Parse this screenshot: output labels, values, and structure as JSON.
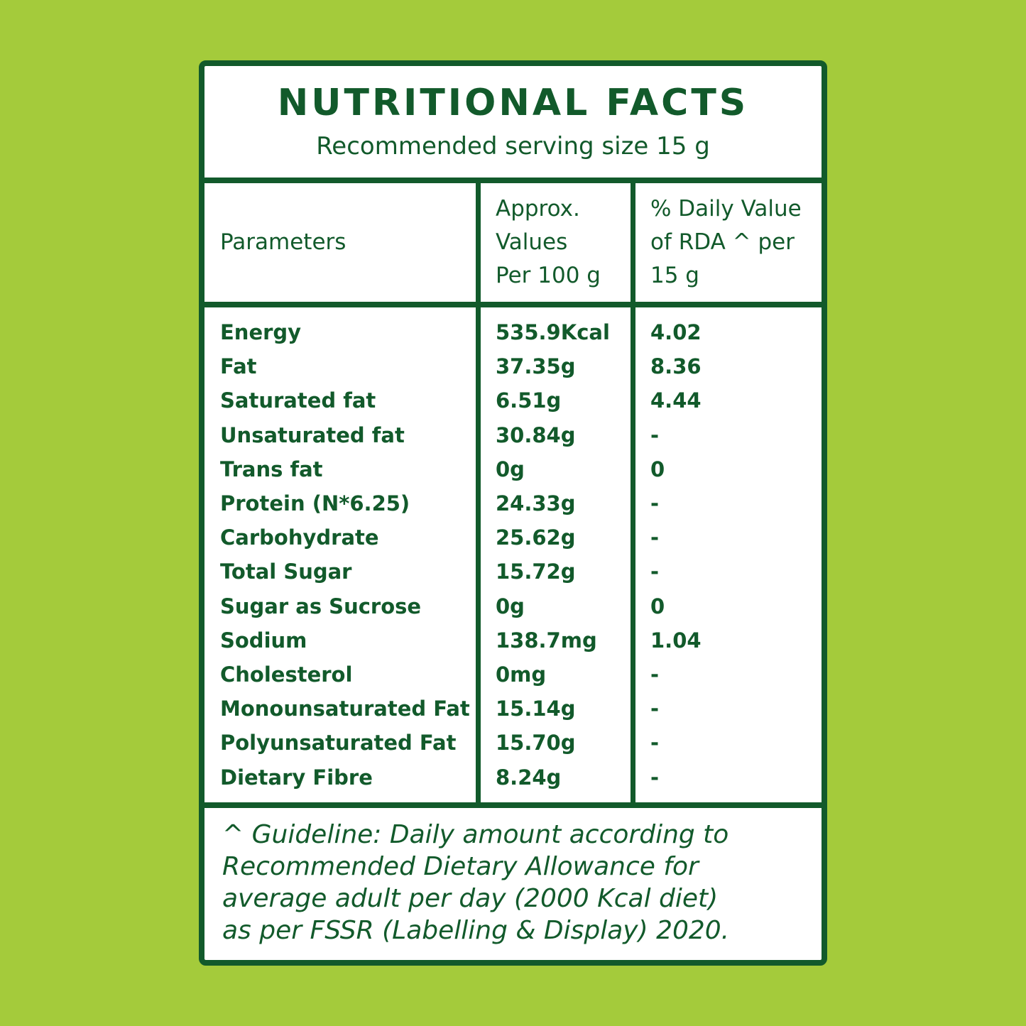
{
  "header": {
    "title": "NUTRITIONAL FACTS",
    "subtitle": "Recommended serving size 15 g"
  },
  "table": {
    "columns": [
      [
        "Parameters"
      ],
      [
        "Approx.",
        "Values",
        "Per 100 g"
      ],
      [
        "% Daily Value",
        "of RDA ^ per",
        "15 g"
      ]
    ],
    "rows": [
      [
        "Energy",
        "535.9Kcal",
        "4.02"
      ],
      [
        "Fat",
        "37.35g",
        "8.36"
      ],
      [
        "Saturated fat",
        "6.51g",
        "4.44"
      ],
      [
        "Unsaturated fat",
        "30.84g",
        "-"
      ],
      [
        "Trans fat",
        "0g",
        "0"
      ],
      [
        "Protein (N*6.25)",
        "24.33g",
        "-"
      ],
      [
        "Carbohydrate",
        "25.62g",
        "-"
      ],
      [
        "Total Sugar",
        "15.72g",
        "-"
      ],
      [
        "Sugar as Sucrose",
        "0g",
        "0"
      ],
      [
        "Sodium",
        "138.7mg",
        "1.04"
      ],
      [
        "Cholesterol",
        "0mg",
        "-"
      ],
      [
        "Monounsaturated Fat",
        "15.14g",
        "-"
      ],
      [
        "Polyunsaturated Fat",
        "15.70g",
        "-"
      ],
      [
        "Dietary Fibre",
        "8.24g",
        "-"
      ]
    ]
  },
  "footnote": [
    "^ Guideline: Daily amount according to",
    "Recommended Dietary Allowance for",
    "average adult per day (2000 Kcal diet)",
    "as per FSSR (Labelling & Display) 2020."
  ]
}
